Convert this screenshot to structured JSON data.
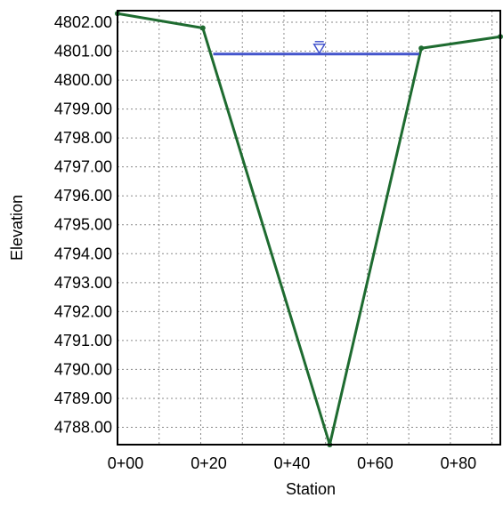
{
  "chart_data": {
    "type": "line",
    "xlabel": "Station",
    "ylabel": "Elevation",
    "x_ticks": [
      {
        "value": 0,
        "label": "0+00"
      },
      {
        "value": 20,
        "label": "0+20"
      },
      {
        "value": 40,
        "label": "0+40"
      },
      {
        "value": 60,
        "label": "0+60"
      },
      {
        "value": 80,
        "label": "0+80"
      }
    ],
    "x_minor_grid": [
      10,
      30,
      50,
      70,
      90
    ],
    "y_ticks": [
      {
        "value": 4788,
        "label": "4788.00"
      },
      {
        "value": 4789,
        "label": "4789.00"
      },
      {
        "value": 4790,
        "label": "4790.00"
      },
      {
        "value": 4791,
        "label": "4791.00"
      },
      {
        "value": 4792,
        "label": "4792.00"
      },
      {
        "value": 4793,
        "label": "4793.00"
      },
      {
        "value": 4794,
        "label": "4794.00"
      },
      {
        "value": 4795,
        "label": "4795.00"
      },
      {
        "value": 4796,
        "label": "4796.00"
      },
      {
        "value": 4797,
        "label": "4797.00"
      },
      {
        "value": 4798,
        "label": "4798.00"
      },
      {
        "value": 4799,
        "label": "4799.00"
      },
      {
        "value": 4800,
        "label": "4800.00"
      },
      {
        "value": 4801,
        "label": "4801.00"
      },
      {
        "value": 4802,
        "label": "4802.00"
      }
    ],
    "xlim": [
      0,
      92
    ],
    "ylim": [
      4787.4,
      4802.4
    ],
    "grid": true,
    "series": [
      {
        "color": "#1e6b30",
        "x": [
          0,
          20.5,
          51,
          73,
          92
        ],
        "y": [
          4802.3,
          4801.8,
          4787.4,
          4801.1,
          4801.5
        ]
      }
    ],
    "water_surface": {
      "color": "#4455cc",
      "x_start": 23,
      "x_end": 72.5,
      "y": 4800.9,
      "marker_x": 48.5
    }
  }
}
